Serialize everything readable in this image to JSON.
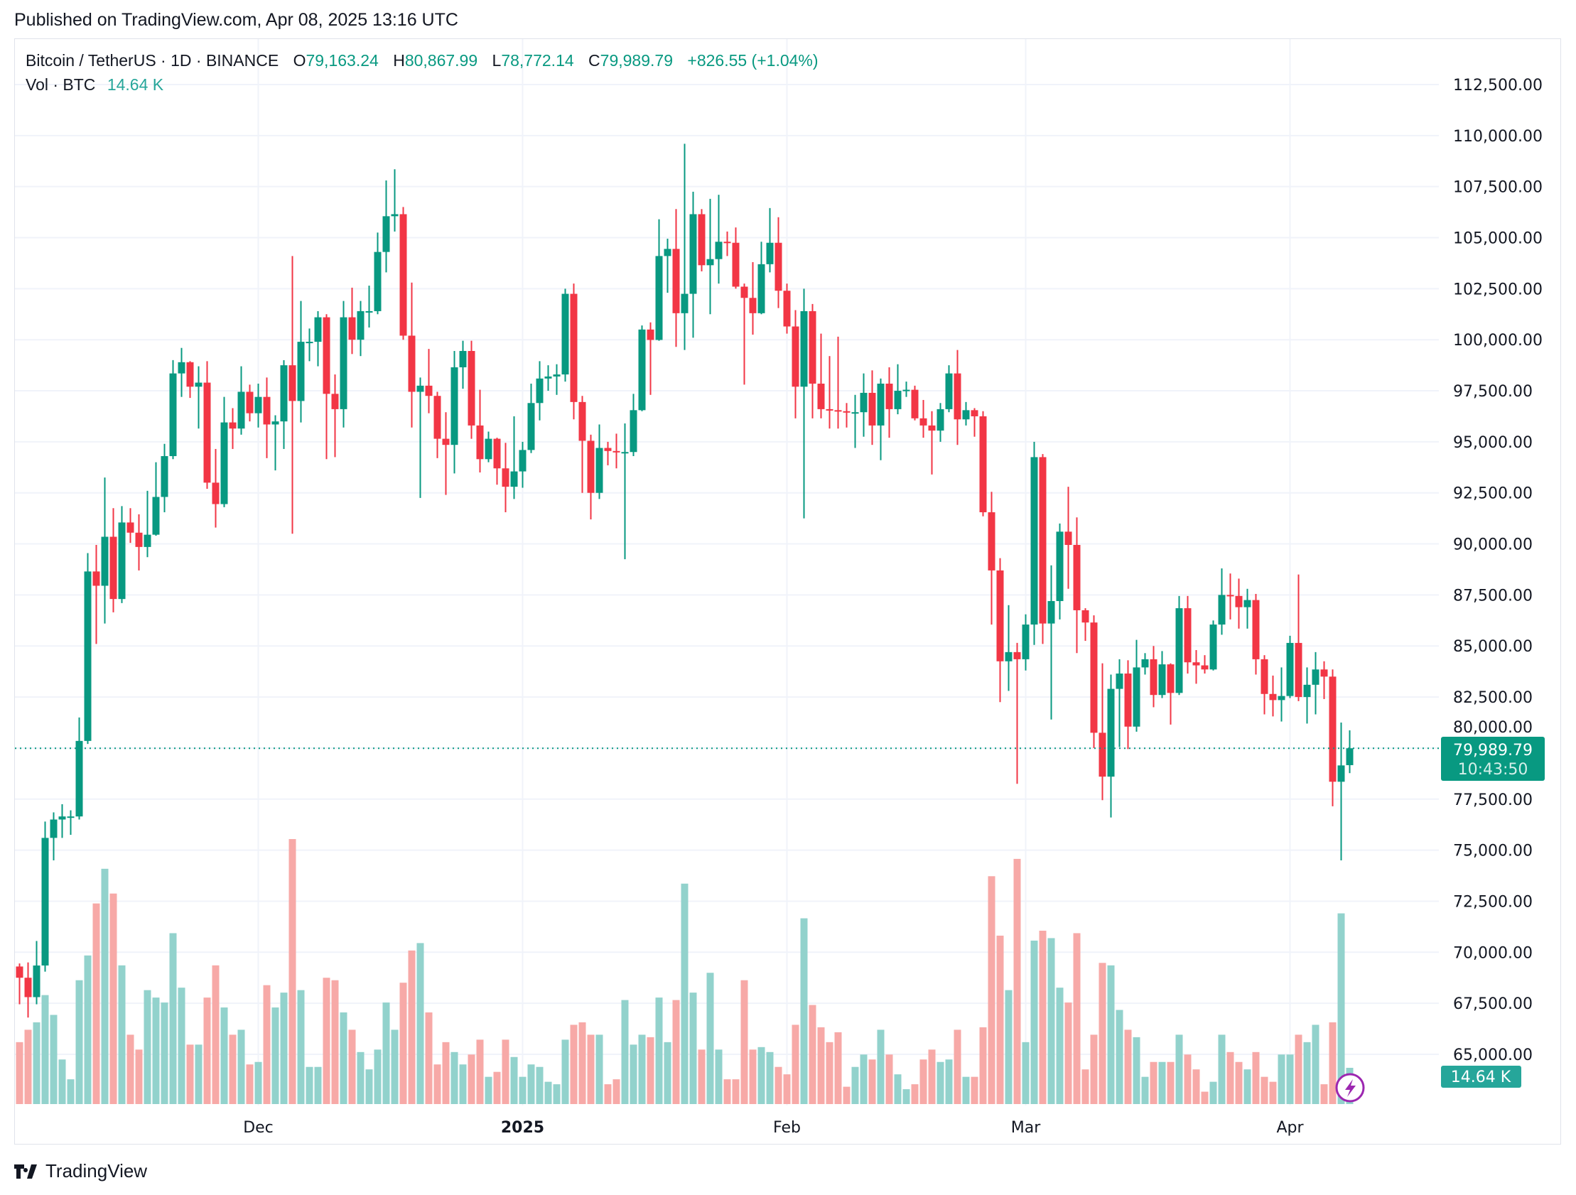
{
  "published": "Published on TradingView.com, Apr 08, 2025 13:16 UTC",
  "legend": {
    "symbol": "Bitcoin / TetherUS · 1D · BINANCE",
    "o_label": "O",
    "o": "79,163.24",
    "h_label": "H",
    "h": "80,867.99",
    "l_label": "L",
    "l": "78,772.14",
    "c_label": "C",
    "c": "79,989.79",
    "change": "+826.55 (+1.04%)",
    "vol_label": "Vol · BTC",
    "vol": "14.64 K"
  },
  "price_tag": {
    "price": "79,989.79",
    "countdown": "10:43:50"
  },
  "volume_tag": "14.64 K",
  "footer_logo": "TradingView",
  "colors": {
    "up": "#089981",
    "down": "#f23645",
    "vol_up": "#92d2cc",
    "vol_down": "#f7a9a7",
    "alert_icon": "#9c27b0"
  },
  "chart_data": {
    "type": "candlestick",
    "title": "Bitcoin / TetherUS · 1D · BINANCE",
    "ylim": [
      62500,
      113500
    ],
    "y_ticks": [
      "112,500.00",
      "110,000.00",
      "107,500.00",
      "105,000.00",
      "102,500.00",
      "100,000.00",
      "97,500.00",
      "95,000.00",
      "92,500.00",
      "90,000.00",
      "87,500.00",
      "85,000.00",
      "82,500.00",
      "80,000.00",
      "77,500.00",
      "75,000.00",
      "72,500.00",
      "70,000.00",
      "67,500.00",
      "65,000.00"
    ],
    "x_ticks": [
      {
        "label": "Dec",
        "date": "2024-12-01",
        "bold": false
      },
      {
        "label": "2025",
        "date": "2025-01-01",
        "bold": true
      },
      {
        "label": "Feb",
        "date": "2025-02-01",
        "bold": false
      },
      {
        "label": "Mar",
        "date": "2025-03-01",
        "bold": false
      },
      {
        "label": "Apr",
        "date": "2025-04-01",
        "bold": false
      }
    ],
    "grid": true,
    "last_price": 79989.79,
    "volume_unit": "K BTC",
    "columns": [
      "date",
      "open",
      "high",
      "low",
      "close",
      "volume"
    ],
    "candles": [
      [
        "2024-11-03",
        69300,
        69450,
        67450,
        68750,
        25
      ],
      [
        "2024-11-04",
        68750,
        69500,
        66800,
        67800,
        30
      ],
      [
        "2024-11-05",
        67800,
        70550,
        67450,
        69350,
        33
      ],
      [
        "2024-11-06",
        69350,
        76400,
        69050,
        75600,
        44
      ],
      [
        "2024-11-07",
        75600,
        76850,
        74500,
        76500,
        36
      ],
      [
        "2024-11-08",
        76500,
        77250,
        75600,
        76650,
        18
      ],
      [
        "2024-11-09",
        76650,
        76950,
        75750,
        76650,
        10
      ],
      [
        "2024-11-10",
        76650,
        81500,
        76500,
        80350,
        50
      ],
      [
        "2024-11-11",
        80350,
        89550,
        80200,
        88650,
        60
      ],
      [
        "2024-11-12",
        88650,
        89950,
        85100,
        87950,
        81
      ],
      [
        "2024-11-13",
        87950,
        93250,
        86100,
        90350,
        95
      ],
      [
        "2024-11-14",
        90350,
        91750,
        86650,
        87300,
        85
      ],
      [
        "2024-11-15",
        87300,
        91850,
        87100,
        91050,
        56
      ],
      [
        "2024-11-16",
        91050,
        91750,
        90050,
        90550,
        28
      ],
      [
        "2024-11-17",
        90550,
        91450,
        88700,
        89850,
        22
      ],
      [
        "2024-11-18",
        89850,
        92600,
        89350,
        90450,
        46
      ],
      [
        "2024-11-19",
        90450,
        94000,
        90400,
        92300,
        43
      ],
      [
        "2024-11-20",
        92300,
        94900,
        91550,
        94300,
        41
      ],
      [
        "2024-11-21",
        94300,
        99000,
        94150,
        98350,
        69
      ],
      [
        "2024-11-22",
        98350,
        99600,
        97200,
        98900,
        47
      ],
      [
        "2024-11-23",
        98900,
        98950,
        97150,
        97700,
        24
      ],
      [
        "2024-11-24",
        97700,
        98700,
        95650,
        97900,
        24
      ],
      [
        "2024-11-25",
        97900,
        98950,
        92700,
        93000,
        43
      ],
      [
        "2024-11-26",
        93000,
        94650,
        90800,
        91950,
        56
      ],
      [
        "2024-11-27",
        91950,
        97200,
        91800,
        95950,
        39
      ],
      [
        "2024-11-28",
        95950,
        96650,
        94650,
        95650,
        28
      ],
      [
        "2024-11-29",
        95650,
        98700,
        95350,
        97450,
        30
      ],
      [
        "2024-11-30",
        97450,
        97800,
        96000,
        96400,
        16
      ],
      [
        "2024-12-01",
        96400,
        97850,
        95700,
        97200,
        17
      ],
      [
        "2024-12-02",
        97200,
        98150,
        94200,
        95850,
        48
      ],
      [
        "2024-12-03",
        95850,
        96300,
        93600,
        96000,
        39
      ],
      [
        "2024-12-04",
        96000,
        99000,
        94650,
        98750,
        45
      ],
      [
        "2024-12-05",
        98750,
        104100,
        90500,
        97000,
        107
      ],
      [
        "2024-12-06",
        97000,
        101900,
        95950,
        99900,
        46
      ],
      [
        "2024-12-07",
        99900,
        100550,
        98950,
        99900,
        15
      ],
      [
        "2024-12-08",
        99900,
        101400,
        98700,
        101100,
        15
      ],
      [
        "2024-12-09",
        101100,
        101250,
        94150,
        97350,
        51
      ],
      [
        "2024-12-10",
        97350,
        98300,
        94250,
        96600,
        50
      ],
      [
        "2024-12-11",
        96600,
        101900,
        95700,
        101100,
        37
      ],
      [
        "2024-12-12",
        101100,
        102550,
        99300,
        100000,
        30
      ],
      [
        "2024-12-13",
        100000,
        101900,
        99200,
        101400,
        21
      ],
      [
        "2024-12-14",
        101400,
        102650,
        100600,
        101400,
        14
      ],
      [
        "2024-12-15",
        101400,
        105250,
        101250,
        104300,
        22
      ],
      [
        "2024-12-16",
        104300,
        107800,
        103300,
        106050,
        41
      ],
      [
        "2024-12-17",
        106050,
        108350,
        105300,
        106150,
        30
      ],
      [
        "2024-12-18",
        106150,
        106500,
        100000,
        100200,
        49
      ],
      [
        "2024-12-19",
        100200,
        102800,
        95700,
        97450,
        62
      ],
      [
        "2024-12-20",
        97450,
        98150,
        92250,
        97750,
        65
      ],
      [
        "2024-12-21",
        97750,
        99550,
        96400,
        97250,
        37
      ],
      [
        "2024-12-22",
        97250,
        97450,
        94200,
        95150,
        16
      ],
      [
        "2024-12-23",
        95150,
        96450,
        92400,
        94850,
        25
      ],
      [
        "2024-12-24",
        94850,
        99450,
        93450,
        98650,
        21
      ],
      [
        "2024-12-25",
        98650,
        99950,
        97600,
        99450,
        16
      ],
      [
        "2024-12-26",
        99450,
        99950,
        95150,
        95800,
        20
      ],
      [
        "2024-12-27",
        95800,
        97550,
        93500,
        94150,
        26
      ],
      [
        "2024-12-28",
        94150,
        95500,
        94000,
        95150,
        11
      ],
      [
        "2024-12-29",
        95150,
        95200,
        92900,
        93700,
        13
      ],
      [
        "2024-12-30",
        93700,
        94950,
        91550,
        92800,
        26
      ],
      [
        "2024-12-31",
        92800,
        96250,
        92200,
        93550,
        19
      ],
      [
        "2025-01-01",
        93550,
        95000,
        92750,
        94600,
        11
      ],
      [
        "2025-01-02",
        94600,
        97850,
        94450,
        96900,
        16
      ],
      [
        "2025-01-03",
        96900,
        98950,
        96050,
        98100,
        15
      ],
      [
        "2025-01-04",
        98100,
        98750,
        97500,
        98200,
        9
      ],
      [
        "2025-01-05",
        98200,
        98800,
        97300,
        98300,
        8
      ],
      [
        "2025-01-06",
        98300,
        102500,
        97950,
        102250,
        26
      ],
      [
        "2025-01-07",
        102250,
        102750,
        96100,
        96950,
        32
      ],
      [
        "2025-01-08",
        96950,
        97250,
        92500,
        95050,
        33
      ],
      [
        "2025-01-09",
        95050,
        95350,
        91200,
        92500,
        28
      ],
      [
        "2025-01-10",
        92500,
        95850,
        92200,
        94700,
        28
      ],
      [
        "2025-01-11",
        94700,
        95000,
        93850,
        94550,
        8
      ],
      [
        "2025-01-12",
        94550,
        95400,
        93700,
        94500,
        10
      ],
      [
        "2025-01-13",
        94500,
        95900,
        89250,
        94500,
        42
      ],
      [
        "2025-01-14",
        94500,
        97350,
        94300,
        96550,
        24
      ],
      [
        "2025-01-15",
        96550,
        100700,
        96500,
        100500,
        28
      ],
      [
        "2025-01-16",
        100500,
        100850,
        97300,
        99990,
        27
      ],
      [
        "2025-01-17",
        99990,
        105900,
        99950,
        104100,
        43
      ],
      [
        "2025-01-18",
        104100,
        104950,
        102300,
        104450,
        25
      ],
      [
        "2025-01-19",
        104450,
        106400,
        99650,
        101300,
        42
      ],
      [
        "2025-01-20",
        101300,
        109600,
        99500,
        102250,
        89
      ],
      [
        "2025-01-21",
        102250,
        107250,
        100100,
        106150,
        45
      ],
      [
        "2025-01-22",
        106150,
        106400,
        103350,
        103650,
        22
      ],
      [
        "2025-01-23",
        103650,
        106900,
        101250,
        103950,
        53
      ],
      [
        "2025-01-24",
        103950,
        107100,
        102750,
        104800,
        22
      ],
      [
        "2025-01-25",
        104800,
        105300,
        104100,
        104750,
        10
      ],
      [
        "2025-01-26",
        104750,
        105500,
        102500,
        102600,
        10
      ],
      [
        "2025-01-27",
        102600,
        102750,
        97800,
        102050,
        50
      ],
      [
        "2025-01-28",
        102050,
        103800,
        100250,
        101300,
        22
      ],
      [
        "2025-01-29",
        101300,
        104800,
        101250,
        103700,
        23
      ],
      [
        "2025-01-30",
        103700,
        106450,
        103300,
        104750,
        21
      ],
      [
        "2025-01-31",
        104750,
        106000,
        101550,
        102400,
        15
      ],
      [
        "2025-02-01",
        102400,
        102750,
        100300,
        100650,
        12
      ],
      [
        "2025-02-02",
        100650,
        101450,
        96150,
        97700,
        32
      ],
      [
        "2025-02-03",
        97700,
        102500,
        91250,
        101400,
        75
      ],
      [
        "2025-02-04",
        101400,
        101750,
        96150,
        97850,
        40
      ],
      [
        "2025-02-05",
        97850,
        100300,
        96150,
        96600,
        31
      ],
      [
        "2025-02-06",
        96600,
        99200,
        95650,
        96550,
        25
      ],
      [
        "2025-02-07",
        96550,
        100150,
        95650,
        96500,
        29
      ],
      [
        "2025-02-08",
        96500,
        96900,
        95700,
        96450,
        7
      ],
      [
        "2025-02-09",
        96450,
        97300,
        94700,
        96450,
        15
      ],
      [
        "2025-02-10",
        96450,
        98350,
        95250,
        97400,
        20
      ],
      [
        "2025-02-11",
        97400,
        98500,
        94850,
        95800,
        18
      ],
      [
        "2025-02-12",
        95800,
        98100,
        94100,
        97850,
        30
      ],
      [
        "2025-02-13",
        97850,
        98650,
        95200,
        96600,
        20
      ],
      [
        "2025-02-14",
        96600,
        98800,
        96350,
        97500,
        12
      ],
      [
        "2025-02-15",
        97500,
        97950,
        97200,
        97550,
        6
      ],
      [
        "2025-02-16",
        97550,
        97750,
        96050,
        96150,
        8
      ],
      [
        "2025-02-17",
        96150,
        97050,
        95200,
        95800,
        18
      ],
      [
        "2025-02-18",
        95800,
        96500,
        93400,
        95550,
        22
      ],
      [
        "2025-02-19",
        95550,
        96900,
        95000,
        96600,
        17
      ],
      [
        "2025-02-20",
        96600,
        98750,
        96450,
        98350,
        18
      ],
      [
        "2025-02-21",
        98350,
        99500,
        94850,
        96100,
        30
      ],
      [
        "2025-02-22",
        96100,
        96950,
        95800,
        96550,
        11
      ],
      [
        "2025-02-23",
        96550,
        96650,
        95250,
        96250,
        11
      ],
      [
        "2025-02-24",
        96250,
        96500,
        91350,
        91550,
        31
      ],
      [
        "2025-02-25",
        91550,
        92550,
        86050,
        88700,
        92
      ],
      [
        "2025-02-26",
        88700,
        89300,
        82250,
        84250,
        68
      ],
      [
        "2025-02-27",
        84250,
        87000,
        82800,
        84700,
        46
      ],
      [
        "2025-02-28",
        84700,
        85150,
        78250,
        84350,
        99
      ],
      [
        "2025-03-01",
        84350,
        86550,
        83800,
        86050,
        25
      ],
      [
        "2025-03-02",
        86050,
        95000,
        85050,
        94250,
        66
      ],
      [
        "2025-03-03",
        94250,
        94400,
        85100,
        86100,
        70
      ],
      [
        "2025-03-04",
        86100,
        88950,
        81400,
        87200,
        67
      ],
      [
        "2025-03-05",
        87200,
        91000,
        86300,
        90600,
        47
      ],
      [
        "2025-03-06",
        90600,
        92800,
        87800,
        89950,
        41
      ],
      [
        "2025-03-07",
        89950,
        91300,
        84650,
        86750,
        69
      ],
      [
        "2025-03-08",
        86750,
        86850,
        85250,
        86150,
        14
      ],
      [
        "2025-03-09",
        86150,
        86500,
        80000,
        80750,
        28
      ],
      [
        "2025-03-10",
        80750,
        84150,
        77450,
        78600,
        57
      ],
      [
        "2025-03-11",
        78600,
        83600,
        76600,
        82900,
        56
      ],
      [
        "2025-03-12",
        82900,
        84350,
        80050,
        83650,
        38
      ],
      [
        "2025-03-13",
        83650,
        84300,
        79950,
        81050,
        30
      ],
      [
        "2025-03-14",
        81050,
        85300,
        80800,
        83950,
        27
      ],
      [
        "2025-03-15",
        83950,
        84650,
        83600,
        84350,
        11
      ],
      [
        "2025-03-16",
        84350,
        85000,
        82000,
        82600,
        17
      ],
      [
        "2025-03-17",
        82600,
        84750,
        82450,
        84100,
        17
      ],
      [
        "2025-03-18",
        84100,
        84150,
        81150,
        82700,
        17
      ],
      [
        "2025-03-19",
        82700,
        87450,
        82600,
        86850,
        28
      ],
      [
        "2025-03-20",
        86850,
        87450,
        83650,
        84200,
        20
      ],
      [
        "2025-03-21",
        84200,
        84800,
        83150,
        84050,
        14
      ],
      [
        "2025-03-22",
        84050,
        84550,
        83650,
        83850,
        5
      ],
      [
        "2025-03-23",
        83850,
        86250,
        83800,
        86050,
        9
      ],
      [
        "2025-03-24",
        86050,
        88800,
        85550,
        87500,
        28
      ],
      [
        "2025-03-25",
        87500,
        88550,
        86300,
        87450,
        21
      ],
      [
        "2025-03-26",
        87450,
        88300,
        85850,
        86900,
        17
      ],
      [
        "2025-03-27",
        86900,
        87800,
        85850,
        87250,
        14
      ],
      [
        "2025-03-28",
        87250,
        87550,
        83600,
        84350,
        21
      ],
      [
        "2025-03-29",
        84350,
        84550,
        81650,
        82650,
        11
      ],
      [
        "2025-03-30",
        82650,
        83550,
        81550,
        82350,
        9
      ],
      [
        "2025-03-31",
        82350,
        83950,
        81300,
        82550,
        20
      ],
      [
        "2025-04-01",
        82550,
        85500,
        82450,
        85150,
        20
      ],
      [
        "2025-04-02",
        85150,
        88500,
        82300,
        82500,
        28
      ],
      [
        "2025-04-03",
        82500,
        83950,
        81200,
        83100,
        25
      ],
      [
        "2025-04-04",
        83100,
        84700,
        81650,
        83850,
        32
      ],
      [
        "2025-04-05",
        83850,
        84250,
        82400,
        83500,
        8
      ],
      [
        "2025-04-06",
        83500,
        83850,
        77150,
        78350,
        33
      ],
      [
        "2025-04-07",
        78350,
        81250,
        74500,
        79150,
        77
      ],
      [
        "2025-04-08",
        79163.24,
        80867.99,
        78772.14,
        79989.79,
        14.64
      ]
    ]
  }
}
